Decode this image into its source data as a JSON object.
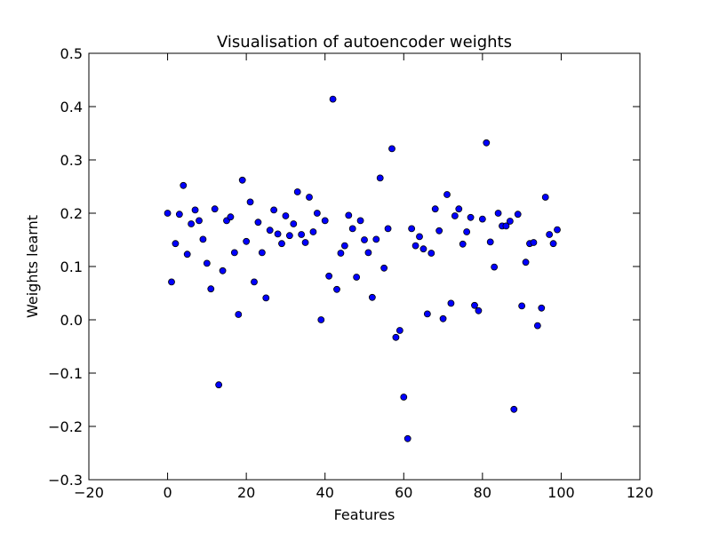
{
  "chart_data": {
    "type": "scatter",
    "title": "Visualisation of autoencoder weights",
    "xlabel": "Features",
    "ylabel": "Weights learnt",
    "xlim": [
      -20,
      120
    ],
    "ylim": [
      -0.3,
      0.5
    ],
    "xticks": [
      -20,
      0,
      20,
      40,
      60,
      80,
      100,
      120
    ],
    "yticks": [
      -0.3,
      -0.2,
      -0.1,
      0.0,
      0.1,
      0.2,
      0.3,
      0.4,
      0.5
    ],
    "xtick_labels": [
      "−20",
      "0",
      "20",
      "40",
      "60",
      "80",
      "100",
      "120"
    ],
    "ytick_labels": [
      "−0.3",
      "−0.2",
      "−0.1",
      "0.0",
      "0.1",
      "0.2",
      "0.3",
      "0.4",
      "0.5"
    ],
    "grid": false,
    "marker_color": "#0000ff",
    "marker_edge_color": "#000000",
    "x": [
      0,
      1,
      2,
      3,
      4,
      5,
      6,
      7,
      8,
      9,
      10,
      11,
      12,
      13,
      14,
      15,
      16,
      17,
      18,
      19,
      20,
      21,
      22,
      23,
      24,
      25,
      26,
      27,
      28,
      29,
      30,
      31,
      32,
      33,
      34,
      35,
      36,
      37,
      38,
      39,
      40,
      41,
      42,
      43,
      44,
      45,
      46,
      47,
      48,
      49,
      50,
      51,
      52,
      53,
      54,
      55,
      56,
      57,
      58,
      59,
      60,
      61,
      62,
      63,
      64,
      65,
      66,
      67,
      68,
      69,
      70,
      71,
      72,
      73,
      74,
      75,
      76,
      77,
      78,
      79,
      80,
      81,
      82,
      83,
      84,
      85,
      86,
      87,
      88,
      89,
      90,
      91,
      92,
      93,
      94,
      95,
      96,
      97,
      98,
      99
    ],
    "y": [
      0.2,
      0.071,
      0.143,
      0.198,
      0.252,
      0.123,
      0.18,
      0.206,
      0.186,
      0.151,
      0.106,
      0.058,
      0.208,
      -0.122,
      0.092,
      0.186,
      0.193,
      0.126,
      0.01,
      0.262,
      0.147,
      0.221,
      0.071,
      0.183,
      0.126,
      0.041,
      0.168,
      0.206,
      0.161,
      0.143,
      0.195,
      0.158,
      0.18,
      0.24,
      0.16,
      0.145,
      0.23,
      0.165,
      0.2,
      0.0,
      0.186,
      0.082,
      0.414,
      0.057,
      0.125,
      0.139,
      0.196,
      0.171,
      0.08,
      0.186,
      0.15,
      0.126,
      0.042,
      0.151,
      0.266,
      0.097,
      0.171,
      0.321,
      -0.033,
      -0.02,
      -0.145,
      -0.223,
      0.171,
      0.139,
      0.156,
      0.133,
      0.011,
      0.125,
      0.208,
      0.167,
      0.002,
      0.235,
      0.031,
      0.195,
      0.208,
      0.142,
      0.165,
      0.192,
      0.027,
      0.017,
      0.189,
      0.332,
      0.146,
      0.099,
      0.2,
      0.176,
      0.176,
      0.185,
      -0.168,
      0.198,
      0.026,
      0.108,
      0.143,
      0.145,
      -0.011,
      0.022,
      0.23,
      0.16,
      0.143,
      0.169
    ]
  }
}
